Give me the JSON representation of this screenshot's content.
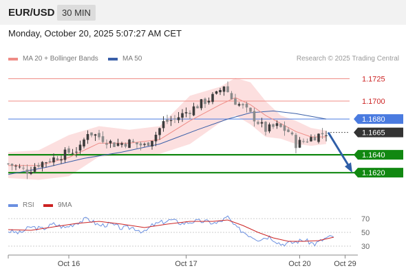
{
  "header": {
    "pair": "EUR/USD",
    "timeframe": "30 MIN",
    "datetime": "Monday, October 20, 2025 5:07:27 AM CET"
  },
  "legend": {
    "bollinger": {
      "label": "MA 20 + Bollinger Bands",
      "color": "#ef8c86"
    },
    "ma50": {
      "label": "MA 50",
      "color": "#3a5fa8"
    },
    "copyright": "Research © 2025 Trading Central"
  },
  "rsi_legend": {
    "rsi": {
      "label": "RSI",
      "color": "#6a8fe0"
    },
    "ma9": {
      "label": "9MA",
      "color": "#cc2222"
    }
  },
  "colors": {
    "up": "#3c3c3c",
    "down": "#8a8a8a",
    "resistance": "#ef8c86",
    "pivot_blue": "#4a7be0",
    "support": "#118811",
    "arrow": "#2f5ea7",
    "band": "#fcdcdc",
    "current": "#333333"
  },
  "chart_data": {
    "type": "candlestick",
    "price_range": [
      1.1604,
      1.174
    ],
    "levels": [
      {
        "value": 1.1725,
        "label": "1.1725",
        "kind": "resistance"
      },
      {
        "value": 1.17,
        "label": "1.1700",
        "kind": "resistance"
      },
      {
        "value": 1.168,
        "label": "1.1680",
        "kind": "pivot"
      },
      {
        "value": 1.1665,
        "label": "1.1665",
        "kind": "current"
      },
      {
        "value": 1.164,
        "label": "1.1640",
        "kind": "support"
      },
      {
        "value": 1.162,
        "label": "1.1620",
        "kind": "support"
      }
    ],
    "x_labels": [
      {
        "label": "Oct 16",
        "index": 16
      },
      {
        "label": "Oct 17",
        "index": 47
      },
      {
        "label": "Oct 20",
        "index": 77
      },
      {
        "label": "Oct 29",
        "index": 89
      }
    ],
    "projection": {
      "from": 1.1665,
      "to": 1.162
    },
    "close_path": [
      [
        0,
        1.163
      ],
      [
        5,
        1.1622
      ],
      [
        8,
        1.163
      ],
      [
        12,
        1.1636
      ],
      [
        16,
        1.1643
      ],
      [
        19,
        1.1647
      ],
      [
        21,
        1.1666
      ],
      [
        24,
        1.166
      ],
      [
        28,
        1.1652
      ],
      [
        32,
        1.1654
      ],
      [
        36,
        1.165
      ],
      [
        39,
        1.1663
      ],
      [
        41,
        1.1676
      ],
      [
        44,
        1.168
      ],
      [
        48,
        1.169
      ],
      [
        52,
        1.17
      ],
      [
        55,
        1.1707
      ],
      [
        57,
        1.1718
      ],
      [
        59,
        1.1703
      ],
      [
        62,
        1.1693
      ],
      [
        65,
        1.1681
      ],
      [
        68,
        1.1668
      ],
      [
        71,
        1.1672
      ],
      [
        74,
        1.1666
      ],
      [
        76,
        1.1652
      ],
      [
        78,
        1.1655
      ],
      [
        81,
        1.1661
      ],
      [
        84,
        1.1665
      ]
    ],
    "ma20": [
      [
        0,
        1.1628
      ],
      [
        8,
        1.1628
      ],
      [
        16,
        1.1637
      ],
      [
        24,
        1.1653
      ],
      [
        32,
        1.1653
      ],
      [
        40,
        1.1657
      ],
      [
        48,
        1.1678
      ],
      [
        56,
        1.1696
      ],
      [
        60,
        1.1704
      ],
      [
        64,
        1.1696
      ],
      [
        68,
        1.1684
      ],
      [
        72,
        1.1675
      ],
      [
        76,
        1.1666
      ],
      [
        80,
        1.166
      ],
      [
        84,
        1.166
      ]
    ],
    "bb_upper": [
      [
        0,
        1.1643
      ],
      [
        8,
        1.1645
      ],
      [
        16,
        1.1662
      ],
      [
        24,
        1.1672
      ],
      [
        32,
        1.1668
      ],
      [
        40,
        1.1672
      ],
      [
        48,
        1.1706
      ],
      [
        56,
        1.1716
      ],
      [
        60,
        1.1726
      ],
      [
        64,
        1.1721
      ],
      [
        68,
        1.17
      ],
      [
        72,
        1.1684
      ],
      [
        76,
        1.1678
      ],
      [
        80,
        1.167
      ],
      [
        84,
        1.1667
      ]
    ],
    "bb_lower": [
      [
        0,
        1.1614
      ],
      [
        8,
        1.1612
      ],
      [
        16,
        1.1616
      ],
      [
        24,
        1.1638
      ],
      [
        32,
        1.164
      ],
      [
        40,
        1.1641
      ],
      [
        48,
        1.1652
      ],
      [
        56,
        1.1676
      ],
      [
        60,
        1.1684
      ],
      [
        64,
        1.1674
      ],
      [
        68,
        1.166
      ],
      [
        72,
        1.1658
      ],
      [
        76,
        1.1652
      ],
      [
        80,
        1.165
      ],
      [
        84,
        1.1652
      ]
    ],
    "ma50": [
      [
        0,
        1.1618
      ],
      [
        10,
        1.1626
      ],
      [
        20,
        1.1636
      ],
      [
        30,
        1.1643
      ],
      [
        40,
        1.1652
      ],
      [
        50,
        1.1668
      ],
      [
        58,
        1.168
      ],
      [
        64,
        1.1687
      ],
      [
        70,
        1.1689
      ],
      [
        76,
        1.1686
      ],
      [
        84,
        1.168
      ]
    ],
    "rsi": {
      "levels": [
        70,
        50,
        30
      ],
      "range": [
        20,
        80
      ],
      "rsi_path": [
        [
          0,
          52
        ],
        [
          3,
          49
        ],
        [
          6,
          58
        ],
        [
          9,
          55
        ],
        [
          12,
          62
        ],
        [
          15,
          57
        ],
        [
          18,
          64
        ],
        [
          21,
          70
        ],
        [
          24,
          60
        ],
        [
          27,
          62
        ],
        [
          30,
          56
        ],
        [
          33,
          57
        ],
        [
          36,
          50
        ],
        [
          38,
          60
        ],
        [
          40,
          64
        ],
        [
          43,
          68
        ],
        [
          46,
          63
        ],
        [
          49,
          66
        ],
        [
          52,
          66
        ],
        [
          55,
          63
        ],
        [
          58,
          72
        ],
        [
          60,
          58
        ],
        [
          63,
          48
        ],
        [
          66,
          40
        ],
        [
          69,
          44
        ],
        [
          72,
          33
        ],
        [
          75,
          35
        ],
        [
          78,
          39
        ],
        [
          81,
          33
        ],
        [
          84,
          42
        ],
        [
          86,
          44
        ]
      ],
      "ma9_path": [
        [
          0,
          54
        ],
        [
          6,
          53
        ],
        [
          12,
          58
        ],
        [
          18,
          63
        ],
        [
          24,
          66
        ],
        [
          30,
          62
        ],
        [
          36,
          57
        ],
        [
          42,
          62
        ],
        [
          48,
          66
        ],
        [
          54,
          66
        ],
        [
          58,
          68
        ],
        [
          62,
          60
        ],
        [
          66,
          50
        ],
        [
          70,
          42
        ],
        [
          74,
          37
        ],
        [
          78,
          37
        ],
        [
          82,
          38
        ],
        [
          86,
          43
        ]
      ]
    }
  }
}
